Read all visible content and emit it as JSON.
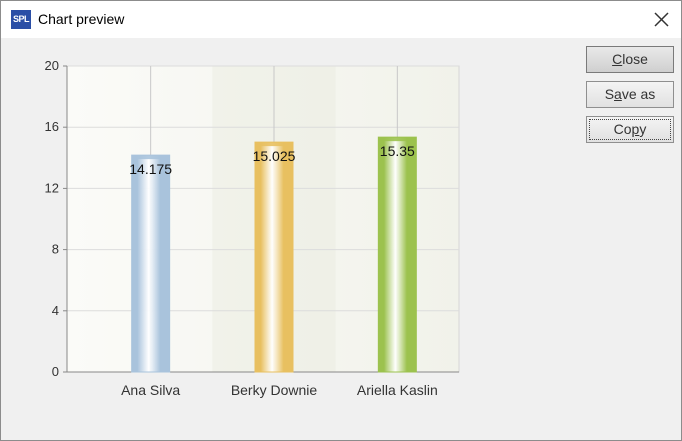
{
  "window": {
    "title": "Chart preview",
    "app_icon_text": "SPL"
  },
  "buttons": {
    "close": {
      "pre": "",
      "u": "C",
      "post": "lose"
    },
    "save_as": {
      "pre": "S",
      "u": "a",
      "post": "ve as"
    },
    "copy": {
      "pre": "Co",
      "u": "p",
      "post": "y"
    }
  },
  "chart_data": {
    "type": "bar",
    "categories": [
      "Ana Silva",
      "Berky Downie",
      "Ariella Kaslin"
    ],
    "values": [
      14.175,
      15.025,
      15.35
    ],
    "value_labels": [
      "14.175",
      "15.025",
      "15.35"
    ],
    "ylim": [
      0,
      20
    ],
    "yticks": [
      0,
      4,
      8,
      12,
      16,
      20
    ],
    "grid": true,
    "colors": [
      "#a9c3dc",
      "#e8c060",
      "#9cc24e"
    ]
  }
}
